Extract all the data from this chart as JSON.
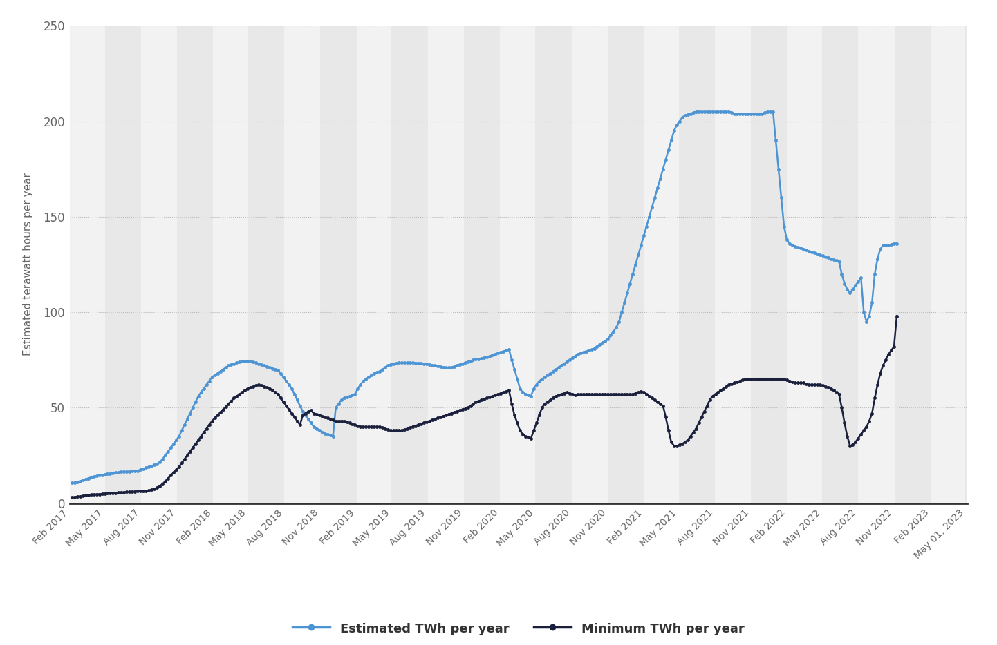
{
  "ylabel": "Estimated terawatt hours per year",
  "background_color": "#ffffff",
  "plot_bg_color": "#ffffff",
  "grid_color": "#cccccc",
  "blue_color": "#4d94d4",
  "dark_color": "#1a1f3c",
  "ylim": [
    0,
    250
  ],
  "yticks": [
    0,
    50,
    100,
    150,
    200,
    250
  ],
  "x_labels": [
    "Feb 2017",
    "May 2017",
    "Aug 2017",
    "Nov 2017",
    "Feb 2018",
    "May 2018",
    "Aug 2018",
    "Nov 2018",
    "Feb 2019",
    "May 2019",
    "Aug 2019",
    "Nov 2019",
    "Feb 2020",
    "May 2020",
    "Aug 2020",
    "Nov 2020",
    "Feb 2021",
    "May 2021",
    "Aug 2021",
    "Nov 2021",
    "Feb 2022",
    "May 2022",
    "Aug 2022",
    "Nov 2022",
    "Feb 2023",
    "May 01, 2023"
  ],
  "legend_label_blue": "Estimated TWh per year",
  "legend_label_dark": "Minimum TWh per year",
  "stripe_light": "#f2f2f2",
  "stripe_dark": "#e8e8e8"
}
